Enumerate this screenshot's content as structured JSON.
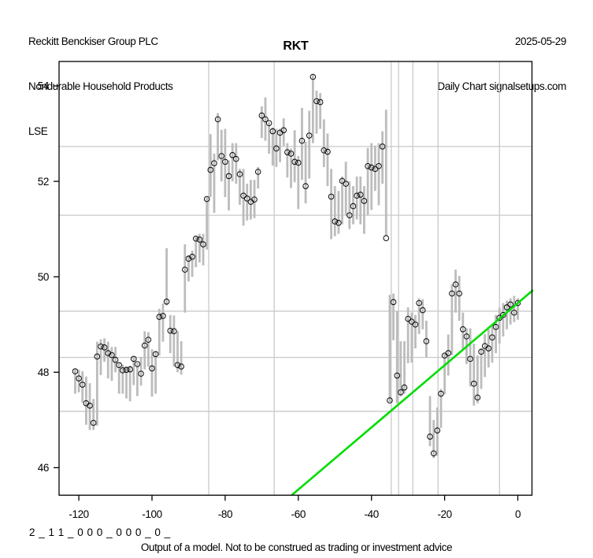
{
  "header": {
    "company": "Reckitt Benckiser Group PLC",
    "sector": "Nondurable Household Products",
    "exchange": "LSE",
    "date": "2025-05-29",
    "chart_label": "Daily Chart signalsetups.com"
  },
  "title": "RKT",
  "footer": {
    "model_string": "2 _ 1 1 _ 0 0 0 _ 0 0 0 _ 0 _",
    "disclaimer": "Output of a model. Not to be construed as trading or investment advice"
  },
  "chart_data": {
    "type": "bar",
    "subtype": "daily-high-low-close-bars",
    "title": "RKT",
    "xlabel": "",
    "ylabel": "",
    "x_ticks": [
      -120,
      -100,
      -80,
      -60,
      -40,
      -20,
      0
    ],
    "y_ticks": [
      46,
      48,
      50,
      52,
      54
    ],
    "xlim": [
      -125.3,
      4.1
    ],
    "ylim": [
      45.42,
      54.56
    ],
    "grid": false,
    "legend": "none",
    "colors": {
      "bar": "#bcbcbc",
      "level_line": "#c9c9c9",
      "close_marker": "#000000",
      "axis": "#000000",
      "trend": "#00DD00"
    },
    "horizontal_levels": [
      52.73,
      51.29,
      49.28,
      48.31,
      47.18
    ],
    "vertical_event_days": [
      -84.5,
      -66.6,
      -34.6,
      -32.6,
      -28.7,
      -21.8,
      -5.0
    ],
    "trend_line": {
      "d1": -61.7,
      "v1": 45.43,
      "d2": 4.0,
      "v2": 49.71
    },
    "series": {
      "day_start": -121,
      "high": [
        48.08,
        48.05,
        48.02,
        47.91,
        47.77,
        47.44,
        48.64,
        48.69,
        48.71,
        48.64,
        48.53,
        48.53,
        48.2,
        48.16,
        48.12,
        48.14,
        48.34,
        48.2,
        48.32,
        48.86,
        48.84,
        48.48,
        48.43,
        49.33,
        49.44,
        50.6,
        49.2,
        49.19,
        48.86,
        48.65,
        50.68,
        50.45,
        50.55,
        50.85,
        50.9,
        50.9,
        51.67,
        52.99,
        52.58,
        53.43,
        53.08,
        53.1,
        52.44,
        52.8,
        52.8,
        52.26,
        52.26,
        51.95,
        52.03,
        52.03,
        52.3,
        53.57,
        53.76,
        53.24,
        53.13,
        53.1,
        53.1,
        53.32,
        52.8,
        52.69,
        53.07,
        52.53,
        53.54,
        52.83,
        53.48,
        54.25,
        53.9,
        53.85,
        53.3,
        53.0,
        52.26,
        51.9,
        51.8,
        52.1,
        52.41,
        52.0,
        51.9,
        52.1,
        52.1,
        51.9,
        52.7,
        52.8,
        52.75,
        52.8,
        53.05,
        53.5,
        49.62,
        49.65,
        49.28,
        48.65,
        48.65,
        49.36,
        49.25,
        49.2,
        49.55,
        49.53,
        49.08,
        47.5,
        47.0,
        47.26,
        47.65,
        48.39,
        48.79,
        49.84,
        50.15,
        50.02,
        49.25,
        48.92,
        48.92,
        48.6,
        48.35,
        48.5,
        48.8,
        48.9,
        49.0,
        49.2,
        49.35,
        49.45,
        49.5,
        49.55,
        49.6,
        49.55
      ],
      "low": [
        47.55,
        47.58,
        47.36,
        46.9,
        46.79,
        46.79,
        46.88,
        47.94,
        48.22,
        47.87,
        47.82,
        48.0,
        47.55,
        47.55,
        47.45,
        47.39,
        47.73,
        47.5,
        47.72,
        48.06,
        48.12,
        47.49,
        47.55,
        48.35,
        48.64,
        49.4,
        48.4,
        48.12,
        48.0,
        47.95,
        49.25,
        49.9,
        50.0,
        50.2,
        50.3,
        50.24,
        50.57,
        51.67,
        51.34,
        52.44,
        52.0,
        51.67,
        51.39,
        52.0,
        51.95,
        51.51,
        51.07,
        51.18,
        51.2,
        51.23,
        51.85,
        52.91,
        52.85,
        52.58,
        52.33,
        52.3,
        52.4,
        52.74,
        52.08,
        51.86,
        51.98,
        51.42,
        52.03,
        51.54,
        52.06,
        52.8,
        53.0,
        53.1,
        52.3,
        51.9,
        50.79,
        50.85,
        50.9,
        51.1,
        51.3,
        51.0,
        51.1,
        51.2,
        51.1,
        50.9,
        51.3,
        51.4,
        51.8,
        51.5,
        51.95,
        50.85,
        47.38,
        48.67,
        47.35,
        47.49,
        47.55,
        48.19,
        48.2,
        48.5,
        48.8,
        48.9,
        48.31,
        46.45,
        46.2,
        46.25,
        46.83,
        47.54,
        47.93,
        48.36,
        49.25,
        49.08,
        48.48,
        48.17,
        47.7,
        47.3,
        47.35,
        47.65,
        47.9,
        48.1,
        48.2,
        48.4,
        48.6,
        48.75,
        48.9,
        49.0,
        49.05,
        49.1
      ],
      "close": [
        48.02,
        47.87,
        47.74,
        47.35,
        47.3,
        46.94,
        48.33,
        48.54,
        48.52,
        48.4,
        48.36,
        48.26,
        48.15,
        48.04,
        48.05,
        48.06,
        48.28,
        48.17,
        47.97,
        48.56,
        48.68,
        48.08,
        48.38,
        49.16,
        49.18,
        49.48,
        48.87,
        48.86,
        48.15,
        48.12,
        50.15,
        50.38,
        50.42,
        50.8,
        50.78,
        50.68,
        51.63,
        52.24,
        52.38,
        53.3,
        52.53,
        52.41,
        52.11,
        52.55,
        52.47,
        52.15,
        51.7,
        51.64,
        51.57,
        51.62,
        52.2,
        53.38,
        53.3,
        53.22,
        53.05,
        52.69,
        53.02,
        53.07,
        52.61,
        52.58,
        52.41,
        52.39,
        52.85,
        51.9,
        52.96,
        54.19,
        53.68,
        53.66,
        52.65,
        52.62,
        51.68,
        51.16,
        51.13,
        52.01,
        51.95,
        51.29,
        51.48,
        51.7,
        51.72,
        51.59,
        52.32,
        52.29,
        52.26,
        52.32,
        52.73,
        50.81,
        47.41,
        49.47,
        47.93,
        47.58,
        47.68,
        49.12,
        49.06,
        49.0,
        49.45,
        49.3,
        48.65,
        46.65,
        46.3,
        46.78,
        47.55,
        48.35,
        48.4,
        49.65,
        49.84,
        49.65,
        48.9,
        48.75,
        48.28,
        47.76,
        47.47,
        48.43,
        48.55,
        48.5,
        48.73,
        48.95,
        49.14,
        49.2,
        49.36,
        49.42,
        49.25,
        49.45
      ]
    }
  }
}
